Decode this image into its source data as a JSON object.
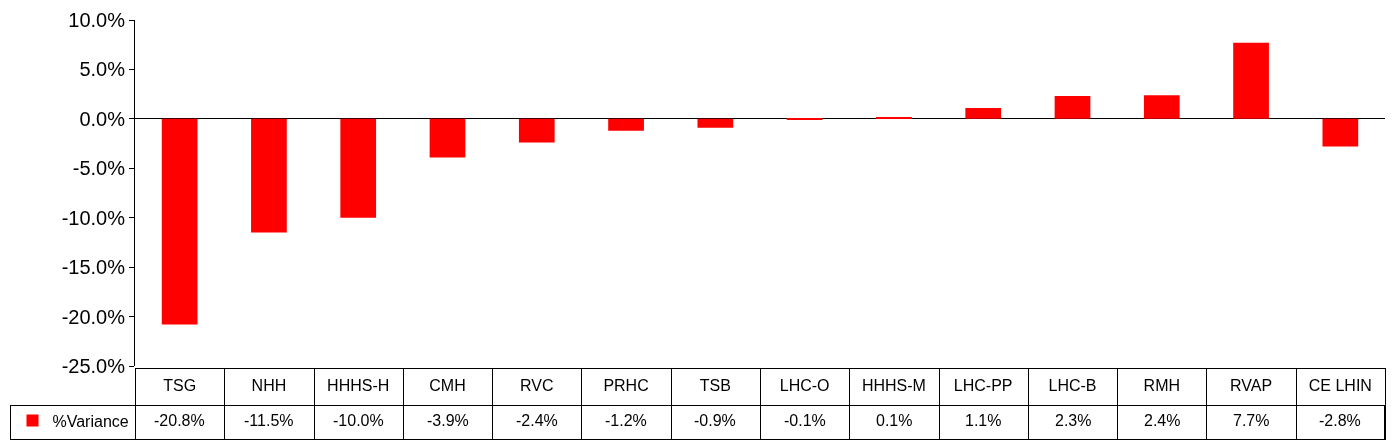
{
  "chart_data": {
    "type": "bar",
    "categories": [
      "TSG",
      "NHH",
      "HHHS-H",
      "CMH",
      "RVC",
      "PRHC",
      "TSB",
      "LHC-O",
      "HHHS-M",
      "LHC-PP",
      "LHC-B",
      "RMH",
      "RVAP",
      "CE LHIN"
    ],
    "series": [
      {
        "name": "%Variance",
        "color": "#ff0000",
        "values": [
          -20.8,
          -11.5,
          -10.0,
          -3.9,
          -2.4,
          -1.2,
          -0.9,
          -0.1,
          0.1,
          1.1,
          2.3,
          2.4,
          7.7,
          -2.8
        ],
        "value_labels": [
          "-20.8%",
          "-11.5%",
          "-10.0%",
          "-3.9%",
          "-2.4%",
          "-1.2%",
          "-0.9%",
          "-0.1%",
          "0.1%",
          "1.1%",
          "2.3%",
          "2.4%",
          "7.7%",
          "-2.8%"
        ]
      }
    ],
    "ylim": [
      -25,
      10
    ],
    "yticks": [
      {
        "value": -25,
        "label": "-25.0%"
      },
      {
        "value": -20,
        "label": "-20.0%"
      },
      {
        "value": -15,
        "label": "-15.0%"
      },
      {
        "value": -10,
        "label": "-10.0%"
      },
      {
        "value": -5,
        "label": "-5.0%"
      },
      {
        "value": 0,
        "label": "0.0%"
      },
      {
        "value": 5,
        "label": "5.0%"
      },
      {
        "value": 10,
        "label": "10.0%"
      }
    ],
    "legend": "bottom left"
  }
}
